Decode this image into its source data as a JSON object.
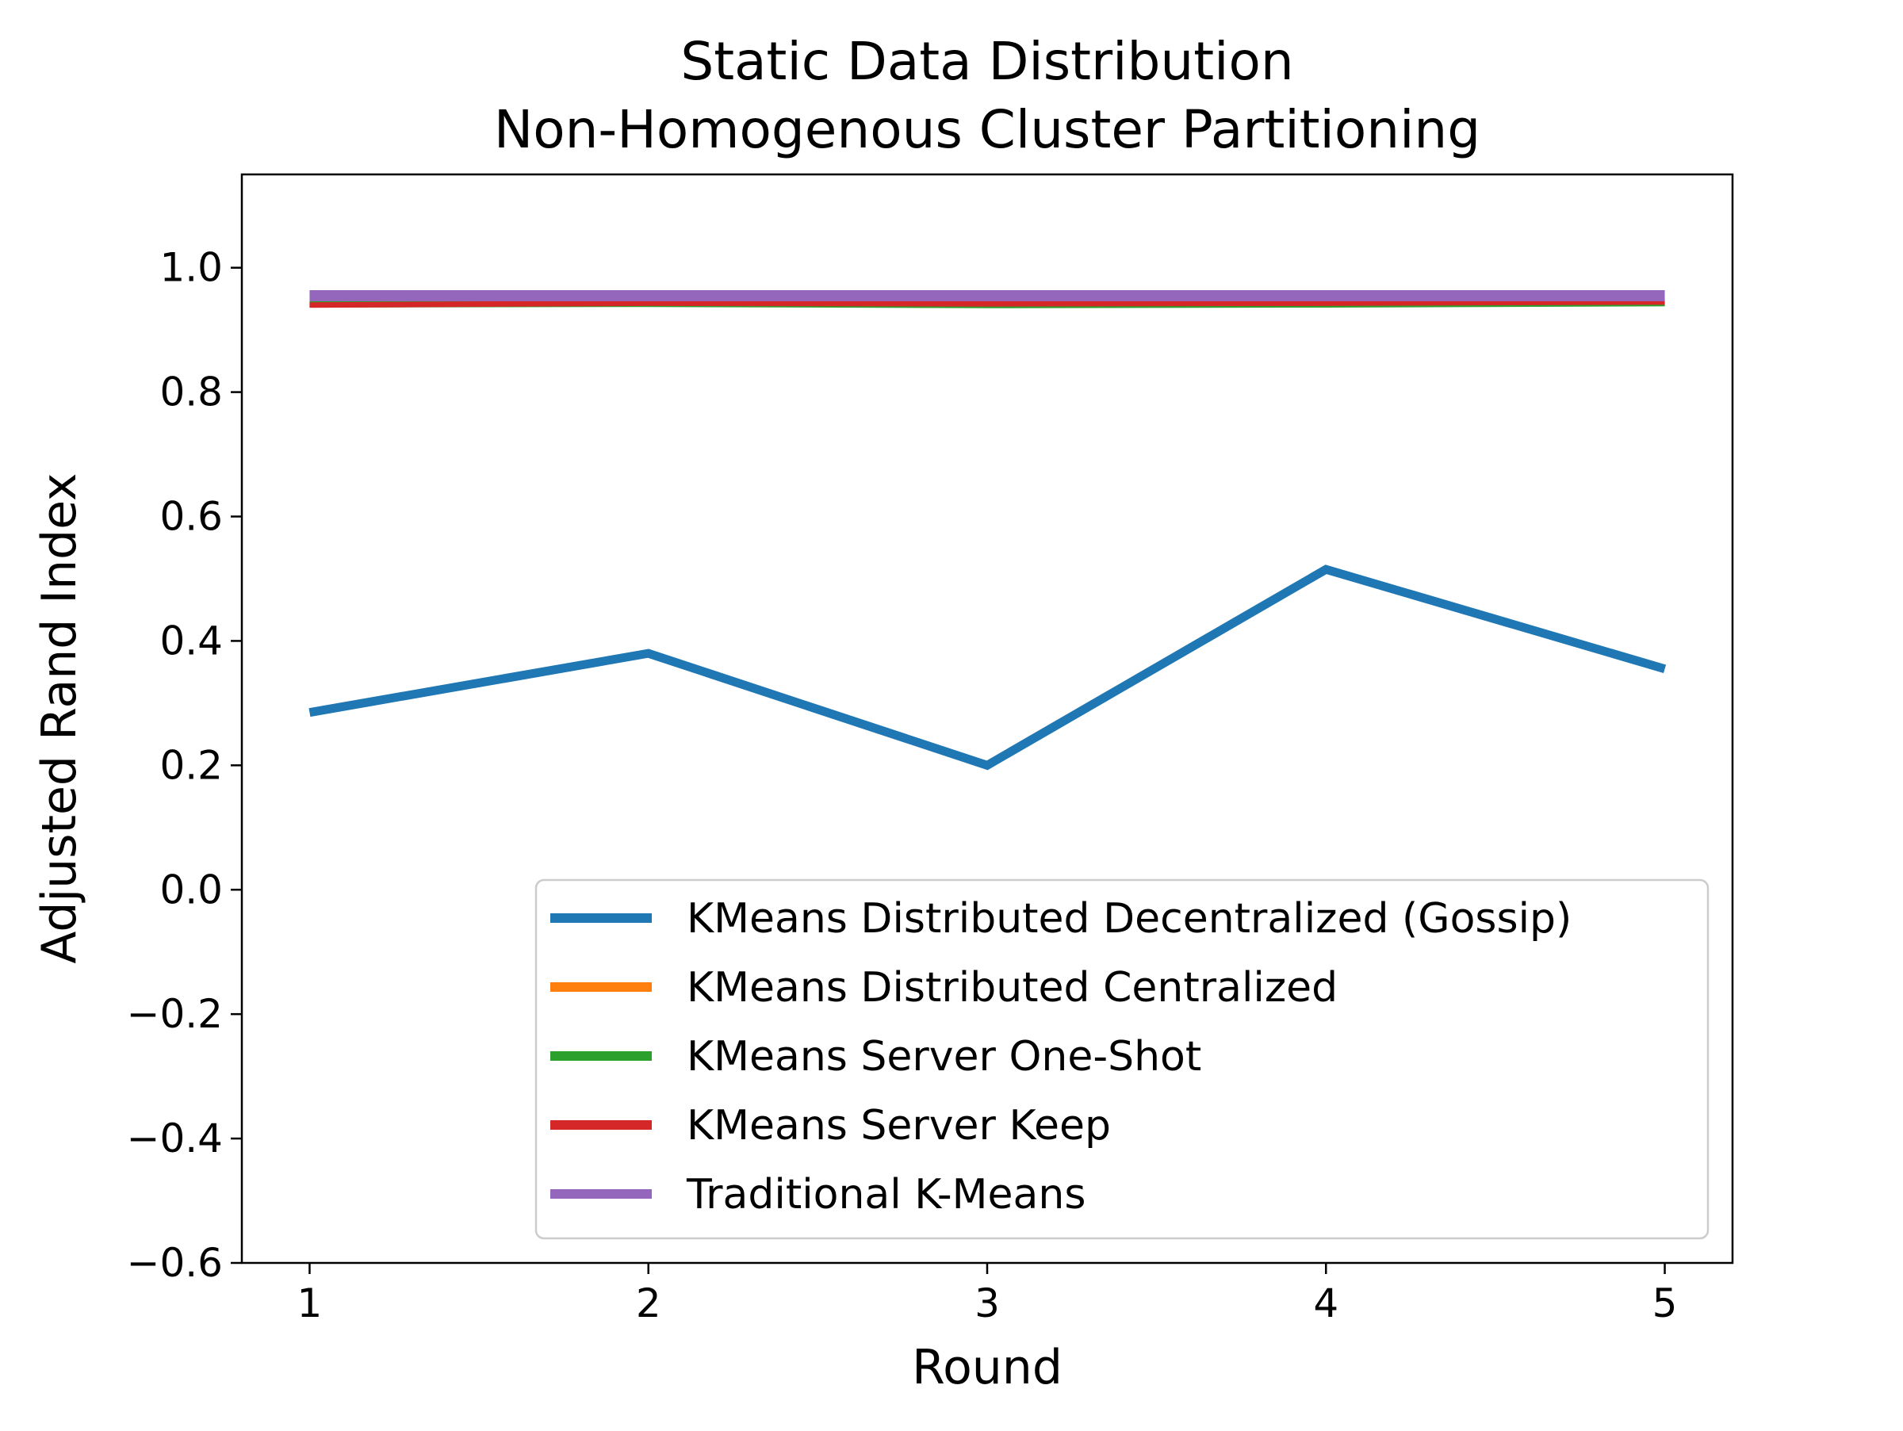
{
  "chart_data": {
    "type": "line",
    "title_lines": [
      "Static Data Distribution",
      "Non-Homogenous Cluster Partitioning"
    ],
    "xlabel": "Round",
    "ylabel": "Adjusted Rand Index",
    "x": [
      1,
      2,
      3,
      4,
      5
    ],
    "xticks": [
      "1",
      "2",
      "3",
      "4",
      "5"
    ],
    "yticks": [
      "−0.6",
      "−0.4",
      "−0.2",
      "0.0",
      "0.2",
      "0.4",
      "0.6",
      "0.8",
      "1.0"
    ],
    "ytick_values": [
      -0.6,
      -0.4,
      -0.2,
      0.0,
      0.2,
      0.4,
      0.6,
      0.8,
      1.0
    ],
    "xlim": [
      0.8,
      5.2
    ],
    "ylim": [
      -0.6,
      1.15
    ],
    "grid": false,
    "legend_position": "lower-right",
    "series": [
      {
        "name": "KMeans Distributed Decentralized (Gossip)",
        "color": "#1f77b4",
        "values": [
          0.285,
          0.38,
          0.2,
          0.515,
          0.355
        ]
      },
      {
        "name": "KMeans Distributed Centralized",
        "color": "#ff7f0e",
        "values": [
          0.941,
          0.943,
          0.941,
          0.942,
          0.944
        ]
      },
      {
        "name": "KMeans Server One-Shot",
        "color": "#2ca02c",
        "values": [
          0.941,
          0.942,
          0.94,
          0.941,
          0.943
        ]
      },
      {
        "name": "KMeans Server Keep",
        "color": "#d62728",
        "values": [
          0.94,
          0.943,
          0.942,
          0.943,
          0.945
        ]
      },
      {
        "name": "Traditional K-Means",
        "color": "#9467bd",
        "values": [
          0.955,
          0.955,
          0.955,
          0.955,
          0.955
        ]
      }
    ]
  }
}
